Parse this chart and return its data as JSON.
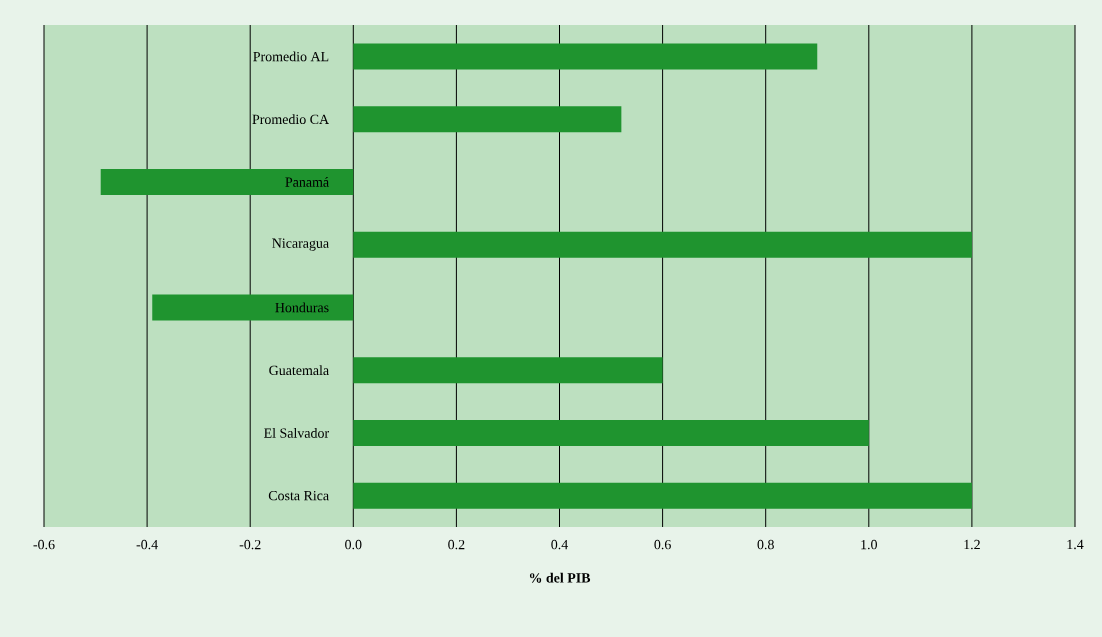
{
  "chart_data": {
    "type": "bar",
    "orientation": "horizontal",
    "xlabel": "**% del PIB**",
    "categories": [
      "Promedio AL",
      "Promedio CA",
      "Panamá",
      "Nicaragua",
      "Honduras",
      "Guatemala",
      "El Salvador",
      "Costa Rica"
    ],
    "values": [
      0.9,
      0.52,
      -0.49,
      1.2,
      -0.39,
      0.6,
      1.0,
      1.2
    ],
    "color": "#1f942f",
    "xlim": [
      -0.6,
      1.4
    ],
    "xticks": [
      -0.6,
      -0.4,
      -0.2,
      {
        "value": 0,
        "label": "0.0"
      },
      0.2,
      0.4,
      0.6,
      0.8,
      {
        "value": 1,
        "label": "1.0"
      },
      1.2,
      1.4
    ],
    "grid": "x"
  }
}
